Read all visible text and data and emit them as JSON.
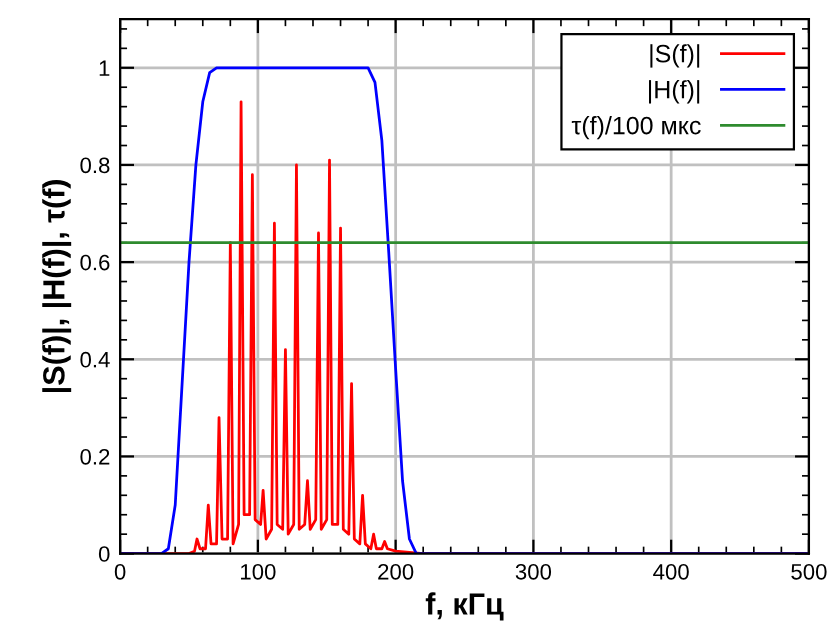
{
  "chart_data": {
    "type": "line",
    "xlabel": "f, кГц",
    "ylabel": "|S(f)|, |H(f)|, τ(f)",
    "xlim": [
      0,
      500
    ],
    "ylim": [
      0,
      1.1
    ],
    "xticks": [
      0,
      100,
      200,
      300,
      400,
      500
    ],
    "yticks": [
      0,
      0.2,
      0.4,
      0.6,
      0.8,
      1
    ],
    "grid": true,
    "legend": "top right",
    "line_style": "solid",
    "marker": "none",
    "series": [
      {
        "name": "|S(f)|",
        "color": "#ff0000",
        "x": [
          0,
          50,
          54,
          55.8,
          58,
          62,
          64,
          66,
          70,
          71.8,
          74,
          78,
          80,
          82,
          86,
          87.8,
          90,
          94,
          96,
          98,
          102,
          103.8,
          106,
          110,
          112,
          114,
          118,
          120,
          122,
          126,
          128,
          130,
          134,
          136,
          138,
          142,
          144,
          146,
          150,
          152,
          154,
          158,
          160,
          162,
          166,
          168,
          170,
          174,
          176,
          178,
          182,
          184,
          186,
          190,
          192,
          194,
          200,
          220,
          500
        ],
        "values": [
          0,
          0,
          0.005,
          0.03,
          0.01,
          0.01,
          0.1,
          0.02,
          0.02,
          0.28,
          0.03,
          0.03,
          0.64,
          0.02,
          0.06,
          0.93,
          0.08,
          0.08,
          0.78,
          0.07,
          0.06,
          0.13,
          0.03,
          0.05,
          0.68,
          0.06,
          0.05,
          0.42,
          0.04,
          0.06,
          0.8,
          0.05,
          0.06,
          0.15,
          0.05,
          0.07,
          0.66,
          0.05,
          0.07,
          0.81,
          0.06,
          0.06,
          0.67,
          0.05,
          0.04,
          0.35,
          0.03,
          0.02,
          0.12,
          0.02,
          0.01,
          0.04,
          0.01,
          0.01,
          0.025,
          0.01,
          0.005,
          0,
          0
        ]
      },
      {
        "name": "|H(f)|",
        "color": "#0000ff",
        "x": [
          0,
          30,
          35,
          40,
          45,
          50,
          55,
          60,
          65,
          70,
          180,
          185,
          190,
          195,
          200,
          205,
          210,
          215,
          500
        ],
        "values": [
          0,
          0,
          0.01,
          0.1,
          0.35,
          0.6,
          0.8,
          0.93,
          0.99,
          1,
          1,
          0.97,
          0.85,
          0.62,
          0.38,
          0.15,
          0.03,
          0,
          0
        ]
      },
      {
        "name": "τ(f)/100 мкс",
        "color": "#2e8b2e",
        "x": [
          0,
          500
        ],
        "values": [
          0.64,
          0.64
        ]
      }
    ]
  }
}
